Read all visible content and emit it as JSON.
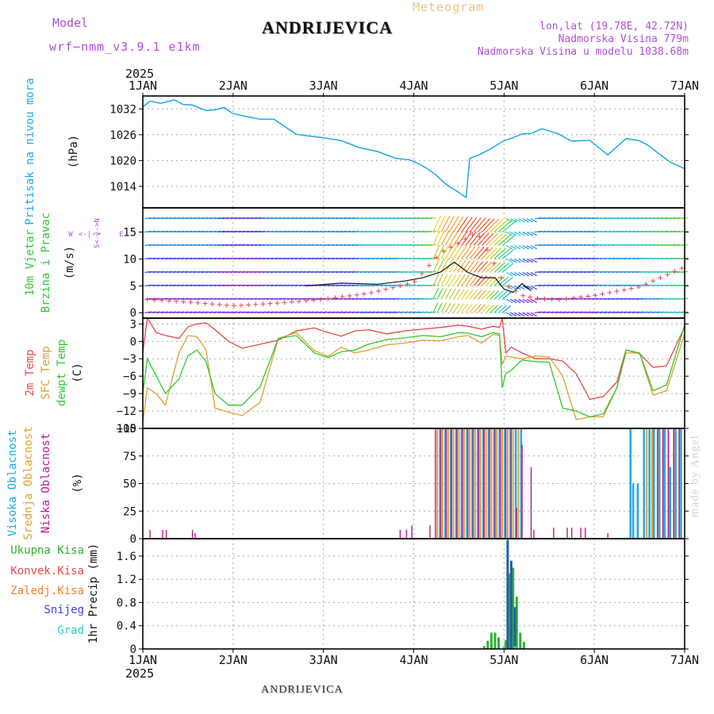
{
  "header": {
    "title": "ANDRIJEVICA",
    "subtitle": "Meteogram",
    "model_label": "Model",
    "model_name": "wrf−nmm_v3.9.1 e1km",
    "location_lines": [
      "lon,lat (19.78E, 42.72N)",
      "Nadmorska Visina 779m",
      "Nadmorska Visina u modelu 1038.68m"
    ],
    "footer": "ANDRIJEVICA",
    "credit": "made by Angel"
  },
  "colors": {
    "pressure": "#20a8e8",
    "temp2m": "#e84848",
    "sfc": "#e0a030",
    "dewpt": "#30c830",
    "visoka": "#20a8e8",
    "srednja": "#e0a030",
    "niska": "#c01890",
    "total_precip": "#30b030",
    "konv": "#e84848",
    "zaledj": "#f08030",
    "snijeg": "#4040e0",
    "grad": "#30c8c8",
    "purple_text": "#b050d8",
    "black_line": "#111111"
  },
  "chart_data": [
    {
      "type": "line",
      "panel": "pressure",
      "year_label": "2025",
      "x_ticks": [
        "1JAN",
        "2JAN",
        "3JAN",
        "4JAN",
        "5JAN",
        "6JAN",
        "7JAN"
      ],
      "x_range_days": [
        0,
        6
      ],
      "ylabel_lines": [
        "Pritisak na nivou mora"
      ],
      "unit": "(hPa)",
      "ylim": [
        1009,
        1035
      ],
      "y_ticks": [
        1014,
        1020,
        1026,
        1032
      ],
      "grid": true,
      "series": [
        {
          "name": "Pritisak na nivou mora",
          "x": [
            0,
            0.08,
            0.2,
            0.35,
            0.45,
            0.55,
            0.7,
            0.8,
            0.9,
            1.0,
            1.15,
            1.3,
            1.45,
            1.55,
            1.7,
            1.8,
            2.0,
            2.2,
            2.4,
            2.6,
            2.8,
            2.95,
            3.05,
            3.15,
            3.25,
            3.35,
            3.45,
            3.5,
            3.55,
            3.58,
            3.62,
            3.72,
            3.85,
            4.0,
            4.1,
            4.2,
            4.3,
            4.42,
            4.6,
            4.75,
            4.95,
            5.15,
            5.35,
            5.5,
            5.6,
            5.7,
            5.85,
            6.0
          ],
          "values": [
            1032.5,
            1033.8,
            1033.3,
            1034.1,
            1033.0,
            1032.9,
            1031.6,
            1031.8,
            1032.3,
            1030.9,
            1030.2,
            1029.6,
            1029.6,
            1028.2,
            1026.1,
            1025.8,
            1025.3,
            1024.6,
            1023.0,
            1022.1,
            1020.5,
            1020.2,
            1019.3,
            1018.1,
            1016.6,
            1014.6,
            1013.2,
            1012.6,
            1011.8,
            1011.4,
            1020.5,
            1021.3,
            1022.7,
            1024.6,
            1025.3,
            1026.2,
            1026.3,
            1027.4,
            1026.2,
            1024.5,
            1024.7,
            1021.3,
            1025.1,
            1024.6,
            1023.5,
            1021.8,
            1019.5,
            1018.1
          ]
        }
      ]
    },
    {
      "type": "line",
      "panel": "wind",
      "ylabel_lines": [
        "10m Vjetar",
        "Brzina i Pravac"
      ],
      "unit": "(m/s)",
      "compass": [
        "W",
        "<-|->",
        "E",
        "S<-|->N"
      ],
      "ylim": [
        -1,
        19.5
      ],
      "y_ticks": [
        0,
        5,
        10,
        15
      ],
      "grid": true,
      "note": "wind barbs drawn at levels 0, 2.5, 5, 7.5, ... colored by speed",
      "series": [
        {
          "name": "speed",
          "x": [
            0,
            0.5,
            1,
            1.5,
            2,
            2.5,
            3,
            3.3,
            3.5,
            3.7,
            3.85,
            4.0,
            4.2,
            4.4,
            4.6,
            4.8,
            5,
            5.5,
            6
          ],
          "values": [
            2.5,
            2.0,
            1.3,
            1.8,
            2.5,
            3.6,
            5.6,
            11.2,
            13.0,
            15.0,
            10.5,
            5.5,
            3.2,
            2.6,
            2.4,
            2.8,
            3.2,
            4.8,
            8.5
          ]
        },
        {
          "name": "gust_black",
          "x": [
            1.8,
            2.2,
            2.6,
            2.9,
            3.1,
            3.3,
            3.45,
            3.6,
            3.75,
            3.9,
            4.0,
            4.1,
            4.2,
            4.3
          ],
          "values": [
            5.0,
            5.5,
            5.3,
            5.9,
            6.5,
            7.6,
            9.4,
            7.5,
            6.5,
            6.5,
            4.4,
            3.8,
            5.4,
            4.1
          ]
        }
      ]
    },
    {
      "type": "line",
      "panel": "temperature",
      "ylabel_lines": [
        "2m Temp",
        "SFC Temp",
        "dewpt Temp"
      ],
      "unit": "(C)",
      "ylim": [
        -15,
        4
      ],
      "y_ticks": [
        -15,
        -12,
        -9,
        -6,
        -3,
        0,
        3
      ],
      "grid": true,
      "x": [
        0,
        0.05,
        0.15,
        0.25,
        0.4,
        0.5,
        0.6,
        0.7,
        0.8,
        0.95,
        1.1,
        1.3,
        1.5,
        1.7,
        1.9,
        2.05,
        2.2,
        2.35,
        2.5,
        2.7,
        2.9,
        3.1,
        3.3,
        3.5,
        3.6,
        3.75,
        3.88,
        3.95,
        3.98,
        4.02,
        4.08,
        4.2,
        4.35,
        4.5,
        4.65,
        4.8,
        4.95,
        5.1,
        5.25,
        5.35,
        5.5,
        5.65,
        5.8,
        6.0
      ],
      "series": [
        {
          "name": "2m Temp",
          "values": [
            -2.0,
            4.0,
            1.5,
            1.0,
            0.5,
            2.5,
            3.0,
            3.2,
            2.0,
            0.0,
            -1.2,
            -0.5,
            0.2,
            1.8,
            2.3,
            1.5,
            0.9,
            1.8,
            2.0,
            1.3,
            1.8,
            2.1,
            2.4,
            2.8,
            2.6,
            2.1,
            2.6,
            2.4,
            4.0,
            -2.0,
            -1.0,
            -2.0,
            -3.0,
            -3.0,
            -3.4,
            -5.6,
            -10.0,
            -9.5,
            -7.0,
            -1.5,
            -2.1,
            -4.5,
            -4.2,
            2.5
          ]
        },
        {
          "name": "SFC Temp",
          "values": [
            -14.0,
            -8.0,
            -9.0,
            -11.0,
            -2.0,
            1.0,
            0.8,
            -1.5,
            -11.5,
            -12.2,
            -12.8,
            -10.5,
            0.5,
            1.5,
            -1.6,
            -2.6,
            -1.0,
            -2.0,
            -1.5,
            -0.6,
            -0.3,
            0.2,
            0.1,
            0.8,
            1.0,
            -0.3,
            1.2,
            1.0,
            -4.0,
            -2.5,
            -2.7,
            -3.0,
            -2.5,
            -2.7,
            -6.0,
            -13.5,
            -13.0,
            -13.0,
            -8.0,
            -2.0,
            -2.0,
            -9.3,
            -8.5,
            1.3
          ]
        },
        {
          "name": "dewpt Temp",
          "values": [
            -9.0,
            -3.0,
            -6.0,
            -9.0,
            -6.5,
            -2.5,
            -1.5,
            -3.5,
            -9.0,
            -11.0,
            -11.0,
            -7.8,
            0.5,
            1.0,
            -2.0,
            -2.8,
            -1.8,
            -1.5,
            -0.5,
            0.3,
            0.6,
            1.0,
            0.8,
            1.5,
            1.4,
            0.8,
            1.5,
            1.3,
            -8.0,
            -5.5,
            -5.0,
            -3.2,
            -3.5,
            -3.6,
            -11.5,
            -12.0,
            -13.0,
            -12.5,
            -8.0,
            -1.5,
            -2.0,
            -8.5,
            -7.5,
            2.8
          ]
        }
      ]
    },
    {
      "type": "bar",
      "panel": "cloud",
      "ylabel_lines": [
        "Visoka Oblacnost",
        "Srednja Oblacnost",
        "Niska Oblacnost"
      ],
      "unit": "(%)",
      "ylim": [
        0,
        100
      ],
      "y_ticks": [
        0,
        25,
        50,
        75,
        100
      ],
      "grid": true,
      "series": [
        {
          "name": "Visoka Oblacnost",
          "x": [
            3.29,
            3.35,
            3.41,
            3.47,
            3.53,
            3.59,
            3.65,
            3.71,
            3.77,
            3.83,
            3.89,
            3.95,
            4.01,
            4.07,
            4.13,
            4.19,
            5.4,
            5.43,
            5.48,
            5.55,
            5.61,
            5.66,
            5.72,
            5.78,
            5.84,
            5.9,
            5.96
          ],
          "values": [
            100,
            100,
            100,
            100,
            100,
            100,
            100,
            100,
            100,
            100,
            100,
            100,
            100,
            100,
            100,
            100,
            100,
            50,
            50,
            100,
            100,
            100,
            100,
            100,
            65,
            100,
            100
          ]
        },
        {
          "name": "Srednja Oblacnost",
          "x": [
            3.26,
            3.32,
            3.38,
            3.44,
            3.5,
            3.56,
            3.62,
            3.68,
            3.74,
            3.8,
            3.86,
            3.92,
            3.98,
            4.04,
            4.1,
            4.16,
            5.58,
            5.64,
            5.7,
            5.76,
            5.82,
            5.88,
            5.94
          ],
          "values": [
            100,
            100,
            100,
            100,
            100,
            100,
            100,
            100,
            100,
            100,
            100,
            100,
            100,
            100,
            100,
            100,
            100,
            100,
            100,
            100,
            100,
            100,
            100
          ]
        },
        {
          "name": "Niska Oblacnost",
          "x": [
            0.08,
            0.22,
            0.26,
            0.55,
            0.58,
            2.85,
            2.92,
            2.98,
            3.18,
            3.24,
            3.3,
            3.36,
            3.42,
            3.48,
            3.54,
            3.6,
            3.66,
            3.72,
            3.78,
            3.84,
            3.9,
            3.96,
            4.02,
            4.08,
            4.14,
            4.2,
            4.3,
            4.33,
            4.55,
            4.7,
            4.75,
            4.85,
            4.9,
            5.15,
            5.7,
            5.76,
            5.82,
            5.88,
            5.94
          ],
          "values": [
            8,
            8,
            8,
            8,
            5,
            8,
            8,
            12,
            12,
            100,
            100,
            100,
            100,
            100,
            100,
            100,
            100,
            100,
            100,
            100,
            100,
            100,
            100,
            100,
            28,
            85,
            65,
            8,
            10,
            10,
            10,
            10,
            10,
            5,
            100,
            100,
            100,
            100,
            100
          ]
        }
      ]
    },
    {
      "type": "bar",
      "panel": "precip",
      "ylabel_lines": [
        "Ukupna Kisa",
        "Konvek.Kisa",
        "Zaledj.Kisa",
        "Snijeg",
        "Grad"
      ],
      "unit": "1hr Precip (mm)",
      "ylim": [
        0,
        1.9
      ],
      "y_ticks": [
        0,
        0.4,
        0.8,
        1.2,
        1.6
      ],
      "grid": true,
      "series": [
        {
          "name": "Ukupna Kisa",
          "x": [
            3.78,
            3.82,
            3.86,
            3.9,
            3.94,
            4.02,
            4.06,
            4.1,
            4.14,
            4.18,
            4.22
          ],
          "values": [
            0.05,
            0.14,
            0.28,
            0.28,
            0.2,
            0.15,
            1.3,
            1.4,
            0.9,
            0.28,
            0.12
          ]
        },
        {
          "name": "Snijeg",
          "x": [
            4.04,
            4.08,
            4.12
          ],
          "values": [
            1.88,
            1.52,
            0.72
          ]
        },
        {
          "name": "Grad",
          "x": [
            4.0,
            4.12
          ],
          "values": [
            0.05,
            0.05
          ]
        }
      ]
    }
  ]
}
